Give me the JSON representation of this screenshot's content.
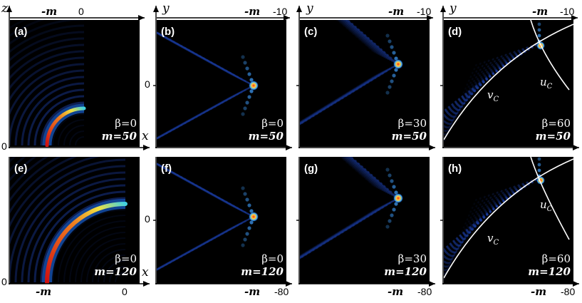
{
  "figure": {
    "axis_labels": {
      "z": "z",
      "y": "y",
      "x": "x"
    },
    "ticks": {
      "m": "-m",
      "zero": "0",
      "neg10": "-10",
      "neg80": "-80"
    },
    "curves": {
      "uc": "u",
      "uc_sub": "C",
      "vc": "v",
      "vc_sub": "C"
    },
    "panels": [
      {
        "id": "a",
        "label": "(a)",
        "beta": "β=0",
        "m": "m=50"
      },
      {
        "id": "b",
        "label": "(b)",
        "beta": "β=0",
        "m": "m=50"
      },
      {
        "id": "c",
        "label": "(c)",
        "beta": "β=30",
        "m": "m=50"
      },
      {
        "id": "d",
        "label": "(d)",
        "beta": "β=60",
        "m": "m=50"
      },
      {
        "id": "e",
        "label": "(e)",
        "beta": "β=0",
        "m": "m=120"
      },
      {
        "id": "f",
        "label": "(f)",
        "beta": "β=0",
        "m": "m=120"
      },
      {
        "id": "g",
        "label": "(g)",
        "beta": "β=30",
        "m": "m=120"
      },
      {
        "id": "h",
        "label": "(h)",
        "beta": "β=60",
        "m": "m=120"
      }
    ]
  },
  "colors": {
    "background": "#000000",
    "beam_hot": "#e02010",
    "beam_mid": "#f0e040",
    "beam_cool": "#2060ff",
    "ring": "#1a3a9a",
    "axis": "#000000",
    "curve": "#ffffff"
  }
}
